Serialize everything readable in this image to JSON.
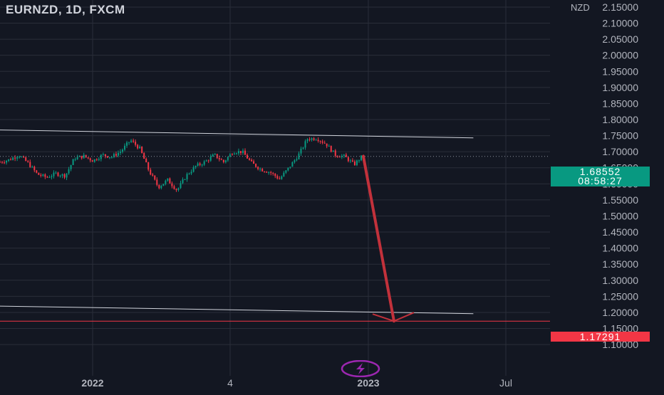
{
  "header": {
    "title": "EURNZD, 1D, FXCM",
    "currency": "NZD"
  },
  "price_tags": {
    "last_price": "1.68552",
    "countdown": "08:58:27",
    "target_price": "1.17291"
  },
  "colors": {
    "background": "#131722",
    "grid": "#2a2e39",
    "up": "#089981",
    "down": "#f23645",
    "trendline": "#d1d4dc",
    "arrow": "#c2313b",
    "last_price_tag": "#089981",
    "target_tag": "#f23645",
    "icon": "#9c27b0"
  },
  "icons": {
    "bolt": "lightning-bolt-icon"
  },
  "chart_data": {
    "type": "candlestick",
    "symbol": "EURNZD",
    "interval": "1D",
    "source": "FXCM",
    "y_axis": {
      "unit": "NZD",
      "ticks": [
        "2.15000",
        "2.10000",
        "2.05000",
        "2.00000",
        "1.95000",
        "1.90000",
        "1.85000",
        "1.80000",
        "1.75000",
        "1.70000",
        "1.65000",
        "1.60000",
        "1.55000",
        "1.50000",
        "1.45000",
        "1.40000",
        "1.35000",
        "1.30000",
        "1.25000",
        "1.20000",
        "1.15000",
        "1.10000"
      ],
      "range": [
        1.08,
        2.18
      ]
    },
    "x_axis": {
      "ticks": [
        "2022",
        "4",
        "2023",
        "Jul"
      ]
    },
    "grid": true,
    "last_price": 1.68552,
    "target_price": 1.17291,
    "price_path": [
      1.668,
      1.675,
      1.69,
      1.665,
      1.63,
      1.62,
      1.632,
      1.625,
      1.68,
      1.686,
      1.672,
      1.69,
      1.684,
      1.702,
      1.736,
      1.71,
      1.64,
      1.59,
      1.612,
      1.58,
      1.626,
      1.655,
      1.668,
      1.69,
      1.668,
      1.7,
      1.7,
      1.665,
      1.645,
      1.636,
      1.615,
      1.65,
      1.688,
      1.74,
      1.742,
      1.724,
      1.69,
      1.685,
      1.66,
      1.69
    ],
    "trendlines": [
      {
        "name": "upper",
        "from": {
          "x": "2021-07-01",
          "y": 1.77
        },
        "to": {
          "x": "2023-05-20",
          "y": 1.743
        }
      },
      {
        "name": "lower",
        "from": {
          "x": "2021-07-01",
          "y": 1.222
        },
        "to": {
          "x": "2023-05-20",
          "y": 1.196
        }
      }
    ],
    "horizontal_line": 1.17291,
    "projection_arrow": {
      "from": 1.68552,
      "to": 1.17291
    }
  }
}
